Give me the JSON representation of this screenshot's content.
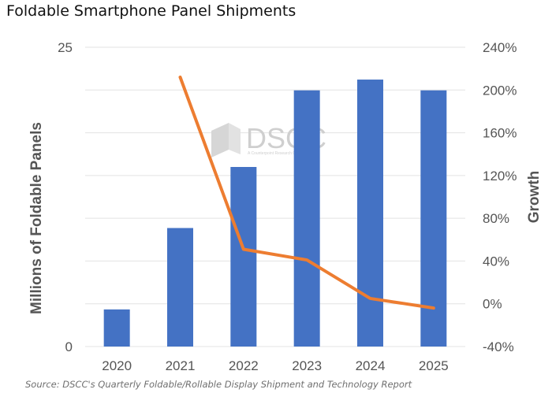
{
  "title": "Foldable Smartphone Panel Shipments",
  "source": "Source: DSCC's Quarterly Foldable/Rollable Display Shipment and Technology Report",
  "watermark": {
    "brand": "DSCC",
    "tagline": "A Counterpoint Research Company"
  },
  "colors": {
    "bar": "#4472C4",
    "line": "#ED7D31",
    "grid": "#e3e3e3"
  },
  "chart_data": {
    "type": "bar",
    "categories": [
      "2020",
      "2021",
      "2022",
      "2023",
      "2024",
      "2025"
    ],
    "series": [
      {
        "type": "bar",
        "axis": "left",
        "values": [
          3.1,
          9.9,
          15.0,
          21.4,
          22.3,
          21.4
        ]
      },
      {
        "type": "line",
        "axis": "right",
        "values": [
          null,
          2.12,
          0.51,
          0.41,
          0.05,
          -0.04
        ]
      }
    ],
    "ylabel": "Millions of Foldable Panels",
    "ylabel_right": "Growth",
    "ylim": [
      0,
      25
    ],
    "ylim_right": [
      -0.4,
      2.4
    ],
    "yticks": [
      "25",
      "0"
    ],
    "yticks_right": [
      "240%",
      "200%",
      "160%",
      "120%",
      "80%",
      "40%",
      "0%",
      "-40%"
    ],
    "grid": true,
    "legend": "none"
  }
}
